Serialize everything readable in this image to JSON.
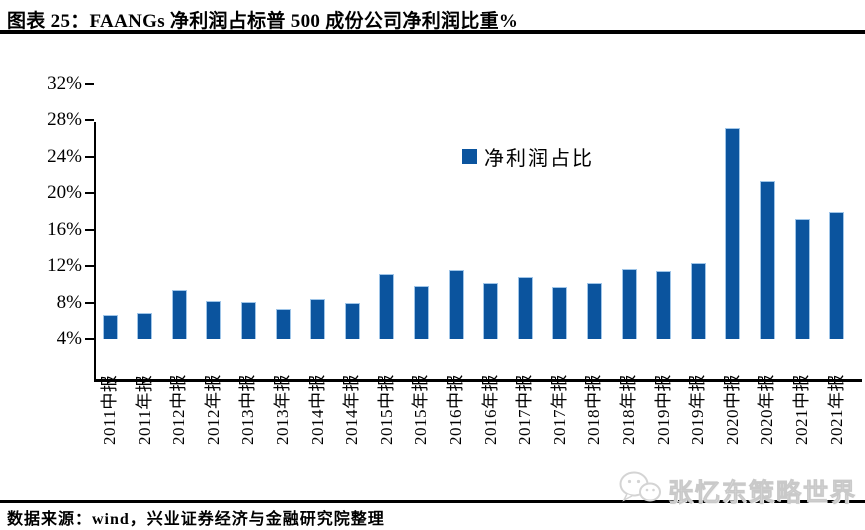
{
  "header": {
    "title": "图表 25：FAANGs 净利润占标普 500 成份公司净利润比重%"
  },
  "chart_data": {
    "type": "bar",
    "title": "图表 25：FAANGs 净利润占标普 500 成份公司净利润比重%",
    "legend": [
      "净利润占比"
    ],
    "legend_position": "top-center",
    "categories": [
      "2011中报",
      "2011年报",
      "2012中报",
      "2012年报",
      "2013中报",
      "2013年报",
      "2014中报",
      "2014年报",
      "2015中报",
      "2015年报",
      "2016中报",
      "2016年报",
      "2017中报",
      "2017年报",
      "2018中报",
      "2018年报",
      "2019中报",
      "2019年报",
      "2020中报",
      "2020年报",
      "2021中报",
      "2021年报"
    ],
    "values": [
      6.6,
      6.9,
      9.4,
      8.2,
      8.1,
      7.3,
      8.4,
      7.9,
      11.1,
      9.8,
      11.6,
      10.1,
      10.8,
      9.7,
      10.2,
      11.7,
      11.5,
      12.3,
      27.2,
      21.3,
      17.2,
      17.9
    ],
    "ylim": [
      4,
      32
    ],
    "ytick_step": 4,
    "ytick_labels": [
      "4%",
      "8%",
      "12%",
      "16%",
      "20%",
      "24%",
      "28%",
      "32%"
    ],
    "grid": false,
    "bar_color": "#0B549E",
    "bar_edge_color": "#9FC5E8"
  },
  "footer": {
    "source": "数据来源：wind，兴业证券经济与金融研究院整理"
  },
  "watermark": {
    "text": "张忆东策略世界",
    "icon": "wechat-icon"
  }
}
